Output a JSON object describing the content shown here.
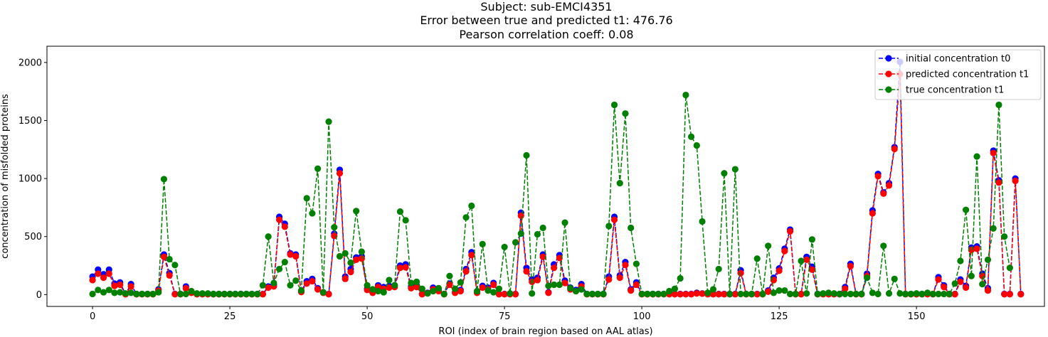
{
  "chart_data": {
    "type": "line",
    "title_lines": [
      "Subject: sub-EMCI4351",
      "Error between true and predicted t1: 476.76",
      "Pearson correlation coeff: 0.08"
    ],
    "xlabel": "ROI (index of brain region based on AAL atlas)",
    "ylabel": "concentration of misfolded proteins",
    "xlim": [
      -8.3,
      173.3
    ],
    "ylim": [
      -102,
      2140
    ],
    "xticks": [
      0,
      25,
      50,
      75,
      100,
      125,
      150
    ],
    "yticks": [
      0,
      500,
      1000,
      1500,
      2000
    ],
    "legend_position": "top-right",
    "grid": false,
    "series": [
      {
        "name": "initial concentration t0",
        "color": "#0000ff",
        "style": "dashed-marker",
        "values": [
          155,
          215,
          175,
          215,
          95,
          105,
          5,
          90,
          5,
          5,
          5,
          5,
          45,
          345,
          185,
          5,
          5,
          70,
          20,
          5,
          5,
          5,
          5,
          5,
          5,
          5,
          5,
          5,
          5,
          5,
          5,
          5,
          70,
          85,
          670,
          610,
          355,
          345,
          30,
          115,
          135,
          55,
          20,
          5,
          525,
          1075,
          155,
          220,
          320,
          330,
          50,
          20,
          80,
          65,
          75,
          80,
          250,
          260,
          70,
          80,
          5,
          15,
          60,
          40,
          5,
          95,
          20,
          40,
          220,
          365,
          20,
          75,
          60,
          100,
          5,
          5,
          5,
          5,
          705,
          230,
          130,
          145,
          345,
          20,
          260,
          340,
          120,
          60,
          40,
          90,
          5,
          5,
          5,
          5,
          155,
          670,
          165,
          280,
          45,
          105,
          5,
          5,
          5,
          5,
          5,
          5,
          5,
          5,
          5,
          5,
          15,
          10,
          5,
          5,
          5,
          5,
          5,
          5,
          210,
          5,
          5,
          5,
          5,
          35,
          145,
          225,
          395,
          560,
          5,
          5,
          325,
          240,
          5,
          5,
          5,
          5,
          5,
          65,
          265,
          5,
          5,
          180,
          725,
          1040,
          880,
          960,
          1270,
          2005,
          5,
          5,
          5,
          5,
          5,
          5,
          150,
          80,
          5,
          5,
          130,
          75,
          405,
          415,
          180,
          55,
          1240,
          985,
          5,
          5,
          1000,
          5
        ]
      },
      {
        "name": "predicted concentration t1",
        "color": "#ff0000",
        "style": "dashed-marker",
        "values": [
          125,
          180,
          145,
          180,
          75,
          85,
          3,
          70,
          3,
          3,
          3,
          3,
          35,
          325,
          165,
          3,
          3,
          55,
          15,
          3,
          3,
          3,
          3,
          3,
          3,
          3,
          3,
          3,
          3,
          3,
          3,
          3,
          60,
          70,
          645,
          585,
          345,
          330,
          22,
          95,
          115,
          45,
          15,
          3,
          505,
          1045,
          135,
          195,
          300,
          310,
          40,
          15,
          65,
          50,
          60,
          65,
          230,
          235,
          55,
          65,
          3,
          12,
          45,
          30,
          3,
          85,
          15,
          30,
          200,
          340,
          15,
          60,
          45,
          85,
          3,
          3,
          3,
          3,
          680,
          200,
          110,
          125,
          325,
          15,
          230,
          315,
          100,
          45,
          30,
          70,
          3,
          3,
          3,
          3,
          130,
          645,
          145,
          255,
          35,
          85,
          3,
          3,
          3,
          3,
          3,
          3,
          3,
          3,
          3,
          3,
          10,
          8,
          3,
          3,
          3,
          3,
          3,
          3,
          185,
          3,
          3,
          3,
          3,
          25,
          125,
          205,
          375,
          545,
          3,
          3,
          300,
          215,
          3,
          3,
          3,
          3,
          3,
          50,
          245,
          3,
          3,
          160,
          700,
          1020,
          870,
          940,
          1255,
          1900,
          3,
          3,
          3,
          3,
          3,
          3,
          130,
          65,
          3,
          3,
          110,
          60,
          385,
          395,
          160,
          35,
          1220,
          965,
          3,
          3,
          980,
          3
        ]
      },
      {
        "name": "true concentration t1",
        "color": "#008000",
        "style": "dashed-marker",
        "values": [
          5,
          40,
          20,
          40,
          15,
          20,
          10,
          15,
          5,
          5,
          5,
          5,
          20,
          995,
          305,
          255,
          5,
          5,
          30,
          10,
          10,
          10,
          5,
          5,
          5,
          5,
          5,
          5,
          5,
          5,
          5,
          80,
          500,
          100,
          220,
          280,
          80,
          120,
          35,
          830,
          700,
          1085,
          20,
          1490,
          580,
          330,
          355,
          275,
          720,
          370,
          80,
          45,
          30,
          20,
          125,
          80,
          715,
          640,
          100,
          110,
          50,
          10,
          30,
          55,
          5,
          160,
          50,
          105,
          665,
          765,
          30,
          435,
          35,
          20,
          50,
          410,
          10,
          450,
          525,
          1200,
          10,
          520,
          575,
          75,
          85,
          85,
          620,
          55,
          30,
          45,
          5,
          5,
          5,
          5,
          590,
          1635,
          960,
          1560,
          575,
          265,
          5,
          5,
          5,
          5,
          5,
          30,
          50,
          140,
          1720,
          1360,
          1285,
          630,
          15,
          45,
          220,
          1045,
          5,
          1080,
          5,
          5,
          5,
          310,
          5,
          420,
          15,
          35,
          35,
          5,
          5,
          290,
          10,
          475,
          5,
          10,
          15,
          10,
          5,
          5,
          5,
          5,
          5,
          145,
          15,
          5,
          420,
          10,
          135,
          10,
          5,
          5,
          10,
          5,
          15,
          5,
          5,
          5,
          5,
          95,
          290,
          730,
          160,
          1190,
          90,
          300,
          570,
          1635,
          500,
          230
        ]
      }
    ]
  }
}
